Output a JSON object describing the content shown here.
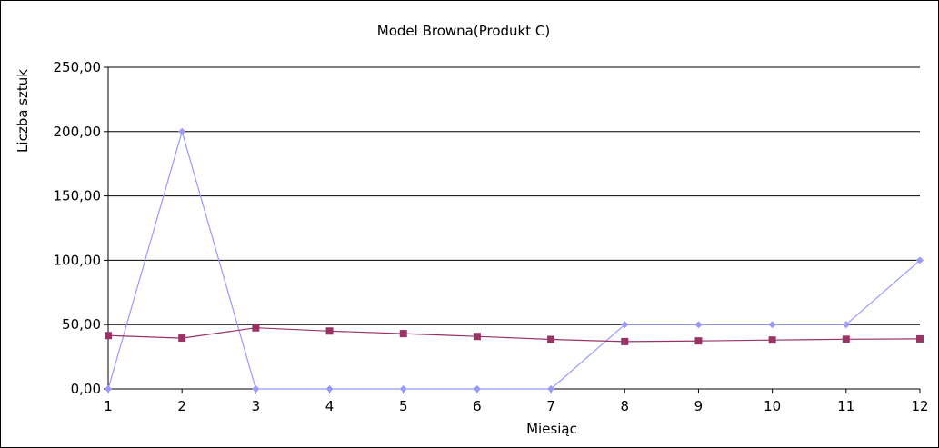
{
  "chart_data": {
    "type": "line",
    "title": "Model Browna(Produkt C)",
    "xlabel": "Miesiąc",
    "ylabel": "Liczba sztuk",
    "x": [
      1,
      2,
      3,
      4,
      5,
      6,
      7,
      8,
      9,
      10,
      11,
      12
    ],
    "x_tick_labels": [
      "1",
      "2",
      "3",
      "4",
      "5",
      "6",
      "7",
      "8",
      "9",
      "10",
      "11",
      "12"
    ],
    "ylim": [
      0,
      250
    ],
    "y_ticks": [
      0,
      50,
      100,
      150,
      200,
      250
    ],
    "y_tick_labels": [
      "0,00",
      "50,00",
      "100,00",
      "150,00",
      "200,00",
      "250,00"
    ],
    "grid": "horizontal",
    "legend": "none",
    "series": [
      {
        "color": "#9999ff",
        "marker": "diamond",
        "values": [
          0,
          200,
          0,
          0,
          0,
          0,
          0,
          50,
          50,
          50,
          50,
          100
        ]
      },
      {
        "color": "#993366",
        "marker": "square",
        "values": [
          41.5,
          39.5,
          47.5,
          45,
          43,
          40.8,
          38.5,
          36.8,
          37.3,
          38,
          38.6,
          38.9
        ]
      }
    ]
  }
}
